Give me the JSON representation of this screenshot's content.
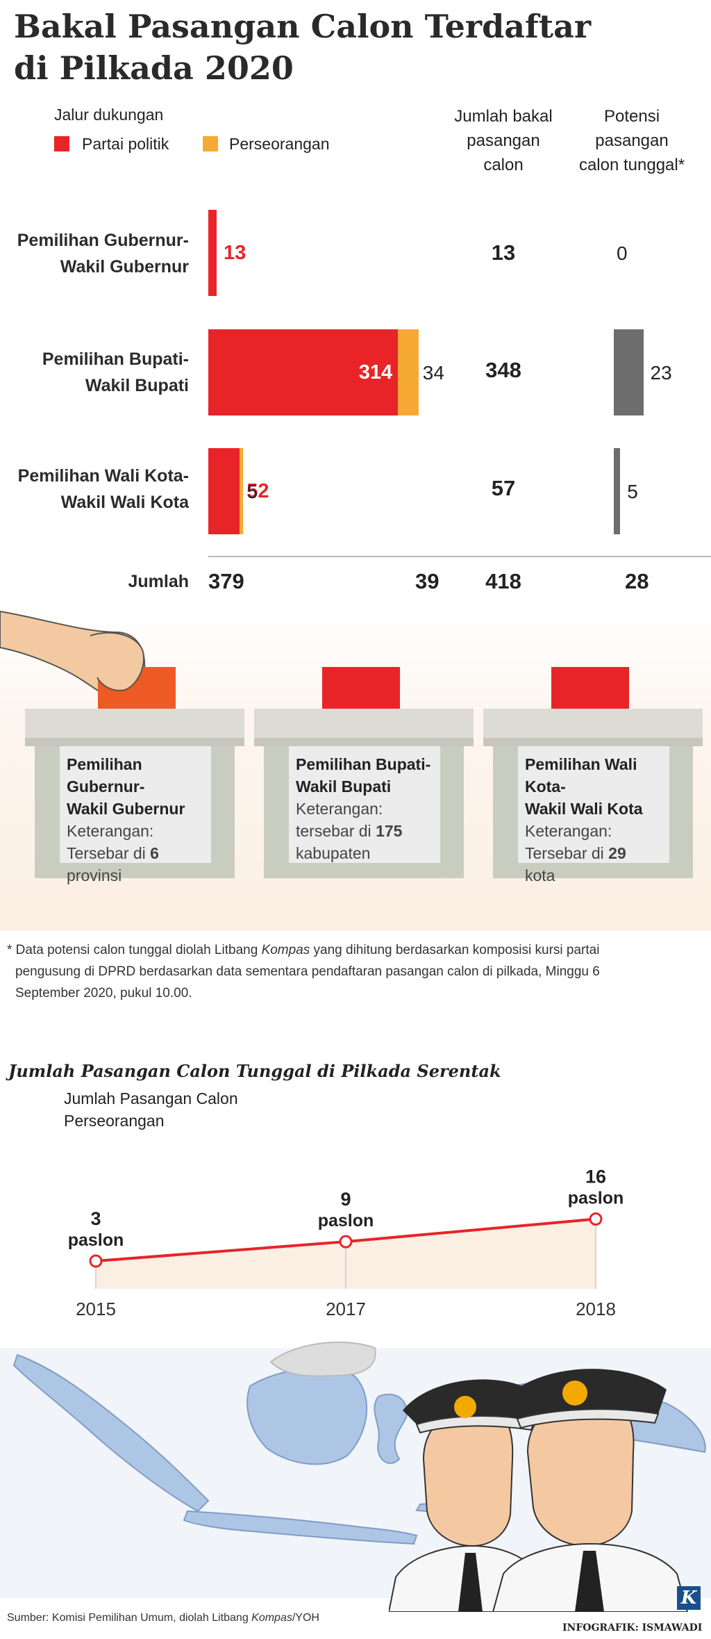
{
  "title_line1": "Bakal Pasangan Calon Terdaftar",
  "title_line2": "di Pilkada 2020",
  "legend": {
    "heading": "Jalur dukungan",
    "party_label": "Partai politik",
    "independent_label": "Perseorangan"
  },
  "col_headers": {
    "total": [
      "Jumlah bakal",
      "pasangan",
      "calon"
    ],
    "single": [
      "Potensi",
      "pasangan",
      "calon tunggal*"
    ]
  },
  "colors": {
    "party": "#e82429",
    "independent": "#f7a935",
    "single": "#6d6d6d"
  },
  "chart_data": [
    {
      "type": "bar",
      "stacked": true,
      "orientation": "horizontal",
      "categories": [
        [
          "Pemilihan Gubernur-",
          "Wakil Gubernur"
        ],
        [
          "Pemilihan Bupati-",
          "Wakil Bupati"
        ],
        [
          "Pemilihan Wali Kota-",
          "Wakil Wali Kota"
        ]
      ],
      "series": [
        {
          "name": "Partai politik",
          "values": [
            13,
            314,
            52
          ]
        },
        {
          "name": "Perseorangan",
          "values": [
            0,
            34,
            5
          ]
        }
      ],
      "jumlah_bakal_pasangan_calon": [
        13,
        348,
        57
      ],
      "potensi_pasangan_calon_tunggal": [
        0,
        23,
        5
      ],
      "totals_label": "Jumlah",
      "totals": {
        "party": 379,
        "independent": 39,
        "total": 418,
        "single": 28
      }
    },
    {
      "type": "line",
      "title": "Jumlah Pasangan Calon Tunggal di Pilkada Serentak",
      "ylabel": [
        "Jumlah Pasangan Calon",
        "Perseorangan"
      ],
      "x": [
        "2015",
        "2017",
        "2018"
      ],
      "series": [
        {
          "values": [
            3,
            9,
            16
          ]
        }
      ],
      "unit": "paslon",
      "point_labels": [
        "3",
        "9",
        "16"
      ]
    }
  ],
  "boxes": [
    {
      "title": [
        "Pemilihan Gubernur-",
        "Wakil Gubernur"
      ],
      "note": "Keterangan:",
      "text": "Tersebar di",
      "number": "6",
      "unit": "provinsi",
      "slip_color": "#ee5a24"
    },
    {
      "title": [
        "Pemilihan Bupati-",
        "Wakil Bupati"
      ],
      "note": "Keterangan:",
      "text": "tersebar di",
      "number": "175",
      "unit": "kabupaten",
      "slip_color": "#e82429"
    },
    {
      "title": [
        "Pemilihan Wali Kota-",
        "Wakil Wali Kota"
      ],
      "note": "Keterangan:",
      "text": "Tersebar di",
      "number": "29",
      "unit": "kota",
      "slip_color": "#e82429"
    }
  ],
  "footnote": {
    "line1_a": "* Data potensi calon tunggal diolah Litbang ",
    "line1_em": "Kompas",
    "line1_b": " yang dihitung berdasarkan komposisi kursi partai",
    "line2": "pengusung di DPRD berdasarkan data sementara pendaftaran pasangan calon di pilkada, Minggu 6",
    "line3": "September 2020, pukul 10.00."
  },
  "source": {
    "a": "Sumber: Komisi Pemilihan Umum, diolah Litbang ",
    "em": "Kompas",
    "b": "/YOH"
  },
  "credit": "INFOGRAFIK: ISMAWADI",
  "logo_letter": "K"
}
